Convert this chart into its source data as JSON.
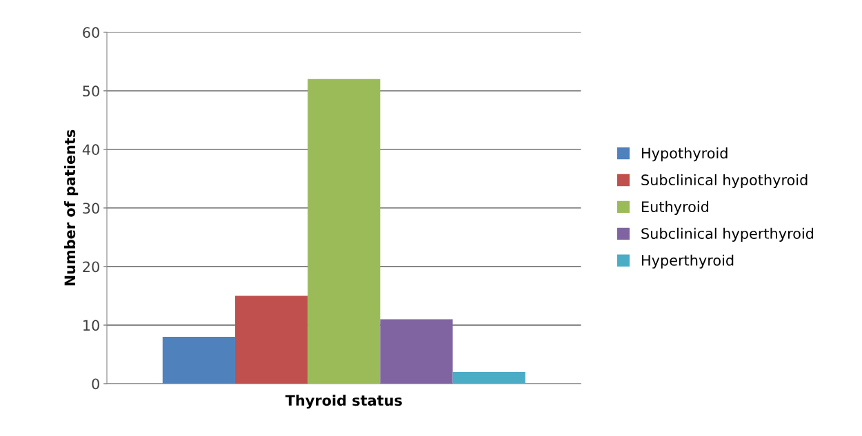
{
  "chart_data": {
    "type": "bar",
    "xlabel": "Thyroid status",
    "ylabel": "Number of patients",
    "categories": [
      null
    ],
    "series": [
      {
        "name": "Hypothyroid",
        "color": "#4f81bd",
        "values": [
          8
        ]
      },
      {
        "name": "Subclinical hypothyroid",
        "color": "#c0504d",
        "values": [
          15
        ]
      },
      {
        "name": "Euthyroid",
        "color": "#9bbb59",
        "values": [
          52
        ]
      },
      {
        "name": "Subclinical hyperthyroid",
        "color": "#8064a2",
        "values": [
          11
        ]
      },
      {
        "name": "Hyperthyroid",
        "color": "#4bacc6",
        "values": [
          2
        ]
      }
    ],
    "ylim": [
      0,
      60
    ],
    "yticks": [
      0,
      10,
      20,
      30,
      40,
      50,
      60
    ],
    "grid": "y",
    "legend": "right"
  }
}
